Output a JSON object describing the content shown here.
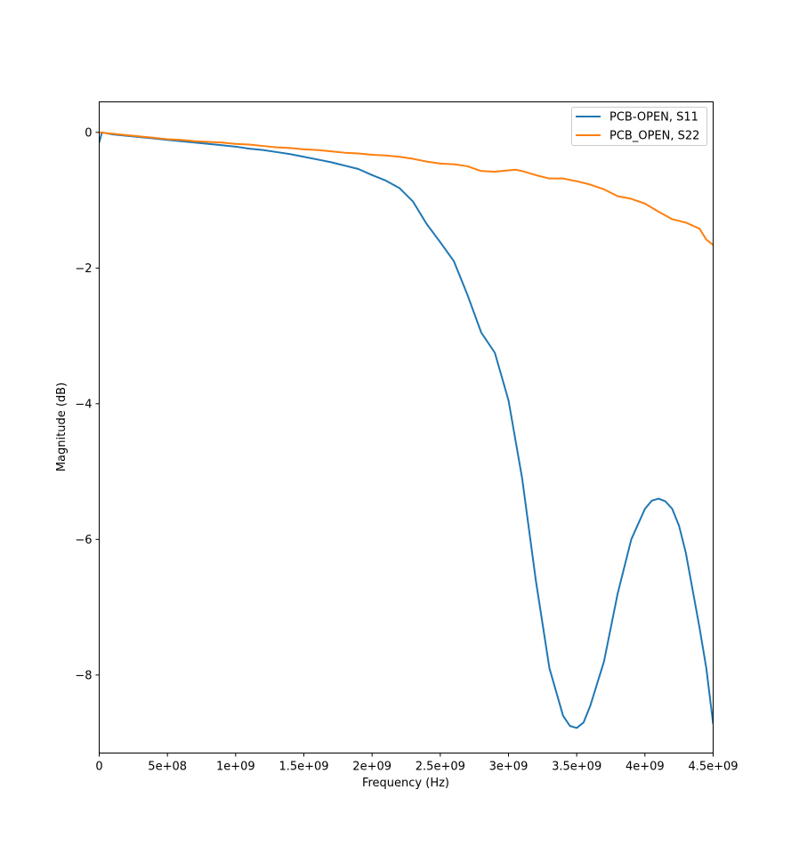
{
  "chart_data": {
    "type": "line",
    "title": "",
    "xlabel": "Frequency (Hz)",
    "ylabel": "Magnitude (dB)",
    "xlim": [
      0,
      4500000000
    ],
    "ylim": [
      -9.15,
      0.45
    ],
    "grid": false,
    "legend_position": "top-right",
    "x_ticks": [
      {
        "value": 0,
        "label": "0"
      },
      {
        "value": 500000000,
        "label": "5e+08"
      },
      {
        "value": 1000000000,
        "label": "1e+09"
      },
      {
        "value": 1500000000,
        "label": "1.5e+09"
      },
      {
        "value": 2000000000,
        "label": "2e+09"
      },
      {
        "value": 2500000000,
        "label": "2.5e+09"
      },
      {
        "value": 3000000000,
        "label": "3e+09"
      },
      {
        "value": 3500000000,
        "label": "3.5e+09"
      },
      {
        "value": 4000000000,
        "label": "4e+09"
      },
      {
        "value": 4500000000,
        "label": "4.5e+09"
      }
    ],
    "y_ticks": [
      {
        "value": 0,
        "label": "0"
      },
      {
        "value": -2,
        "label": "−2"
      },
      {
        "value": -4,
        "label": "−4"
      },
      {
        "value": -6,
        "label": "−6"
      },
      {
        "value": -8,
        "label": "−8"
      }
    ],
    "series": [
      {
        "name": "PCB-OPEN, S11",
        "color": "#1f77b4",
        "points": [
          [
            0,
            -0.15
          ],
          [
            20000000,
            0.0
          ],
          [
            100000000,
            -0.03
          ],
          [
            200000000,
            -0.05
          ],
          [
            300000000,
            -0.07
          ],
          [
            400000000,
            -0.09
          ],
          [
            500000000,
            -0.11
          ],
          [
            600000000,
            -0.13
          ],
          [
            700000000,
            -0.15
          ],
          [
            800000000,
            -0.17
          ],
          [
            900000000,
            -0.19
          ],
          [
            1000000000,
            -0.21
          ],
          [
            1100000000,
            -0.24
          ],
          [
            1200000000,
            -0.26
          ],
          [
            1300000000,
            -0.29
          ],
          [
            1400000000,
            -0.32
          ],
          [
            1500000000,
            -0.36
          ],
          [
            1600000000,
            -0.4
          ],
          [
            1700000000,
            -0.44
          ],
          [
            1800000000,
            -0.49
          ],
          [
            1900000000,
            -0.54
          ],
          [
            2000000000,
            -0.63
          ],
          [
            2100000000,
            -0.71
          ],
          [
            2200000000,
            -0.82
          ],
          [
            2300000000,
            -1.02
          ],
          [
            2400000000,
            -1.35
          ],
          [
            2500000000,
            -1.62
          ],
          [
            2600000000,
            -1.9
          ],
          [
            2700000000,
            -2.4
          ],
          [
            2800000000,
            -2.95
          ],
          [
            2900000000,
            -3.25
          ],
          [
            3000000000,
            -3.95
          ],
          [
            3100000000,
            -5.1
          ],
          [
            3200000000,
            -6.6
          ],
          [
            3300000000,
            -7.9
          ],
          [
            3400000000,
            -8.6
          ],
          [
            3450000000,
            -8.75
          ],
          [
            3500000000,
            -8.78
          ],
          [
            3550000000,
            -8.7
          ],
          [
            3600000000,
            -8.45
          ],
          [
            3700000000,
            -7.8
          ],
          [
            3800000000,
            -6.8
          ],
          [
            3900000000,
            -6.0
          ],
          [
            4000000000,
            -5.55
          ],
          [
            4050000000,
            -5.43
          ],
          [
            4100000000,
            -5.4
          ],
          [
            4150000000,
            -5.44
          ],
          [
            4200000000,
            -5.55
          ],
          [
            4250000000,
            -5.8
          ],
          [
            4300000000,
            -6.2
          ],
          [
            4350000000,
            -6.75
          ],
          [
            4400000000,
            -7.3
          ],
          [
            4450000000,
            -7.9
          ],
          [
            4500000000,
            -8.72
          ]
        ]
      },
      {
        "name": "PCB_OPEN, S22",
        "color": "#ff7f0e",
        "points": [
          [
            0,
            0.0
          ],
          [
            100000000,
            -0.02
          ],
          [
            200000000,
            -0.04
          ],
          [
            300000000,
            -0.06
          ],
          [
            400000000,
            -0.08
          ],
          [
            500000000,
            -0.1
          ],
          [
            600000000,
            -0.11
          ],
          [
            700000000,
            -0.13
          ],
          [
            800000000,
            -0.14
          ],
          [
            900000000,
            -0.15
          ],
          [
            1000000000,
            -0.17
          ],
          [
            1100000000,
            -0.18
          ],
          [
            1200000000,
            -0.2
          ],
          [
            1300000000,
            -0.22
          ],
          [
            1400000000,
            -0.23
          ],
          [
            1500000000,
            -0.25
          ],
          [
            1600000000,
            -0.26
          ],
          [
            1700000000,
            -0.28
          ],
          [
            1800000000,
            -0.3
          ],
          [
            1900000000,
            -0.31
          ],
          [
            2000000000,
            -0.33
          ],
          [
            2100000000,
            -0.34
          ],
          [
            2200000000,
            -0.36
          ],
          [
            2300000000,
            -0.39
          ],
          [
            2400000000,
            -0.43
          ],
          [
            2500000000,
            -0.46
          ],
          [
            2600000000,
            -0.47
          ],
          [
            2700000000,
            -0.5
          ],
          [
            2800000000,
            -0.57
          ],
          [
            2900000000,
            -0.58
          ],
          [
            3000000000,
            -0.56
          ],
          [
            3050000000,
            -0.55
          ],
          [
            3100000000,
            -0.57
          ],
          [
            3200000000,
            -0.63
          ],
          [
            3300000000,
            -0.68
          ],
          [
            3400000000,
            -0.68
          ],
          [
            3500000000,
            -0.72
          ],
          [
            3600000000,
            -0.77
          ],
          [
            3700000000,
            -0.84
          ],
          [
            3800000000,
            -0.94
          ],
          [
            3900000000,
            -0.98
          ],
          [
            4000000000,
            -1.05
          ],
          [
            4100000000,
            -1.17
          ],
          [
            4200000000,
            -1.28
          ],
          [
            4300000000,
            -1.33
          ],
          [
            4400000000,
            -1.42
          ],
          [
            4450000000,
            -1.58
          ],
          [
            4500000000,
            -1.66
          ]
        ]
      }
    ]
  }
}
